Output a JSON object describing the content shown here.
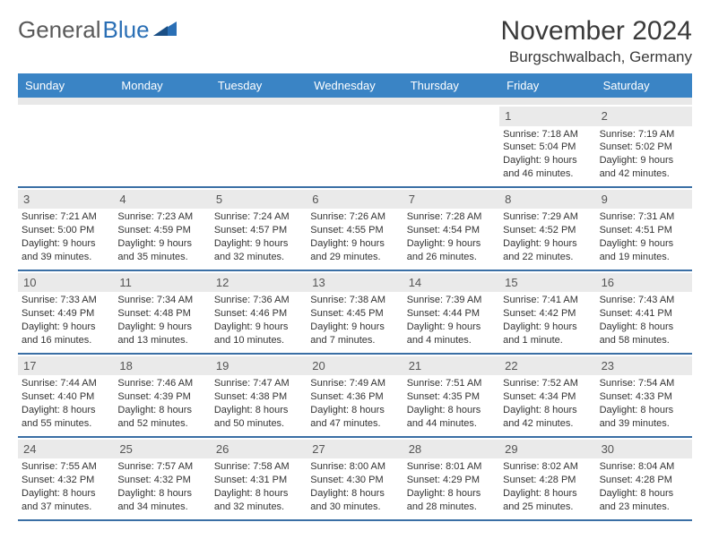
{
  "logo": {
    "text1": "General",
    "text2": "Blue"
  },
  "title": "November 2024",
  "location": "Burgschwalbach, Germany",
  "colors": {
    "header_bg": "#3a84c5",
    "header_text": "#ffffff",
    "divider": "#3a6fa5",
    "daynum_bg": "#eaeaea",
    "logo_gray": "#5a5a5a",
    "logo_blue": "#2a6fb5"
  },
  "dayNames": [
    "Sunday",
    "Monday",
    "Tuesday",
    "Wednesday",
    "Thursday",
    "Friday",
    "Saturday"
  ],
  "weeks": [
    [
      null,
      null,
      null,
      null,
      null,
      {
        "n": "1",
        "sunrise": "7:18 AM",
        "sunset": "5:04 PM",
        "daylight": "9 hours and 46 minutes."
      },
      {
        "n": "2",
        "sunrise": "7:19 AM",
        "sunset": "5:02 PM",
        "daylight": "9 hours and 42 minutes."
      }
    ],
    [
      {
        "n": "3",
        "sunrise": "7:21 AM",
        "sunset": "5:00 PM",
        "daylight": "9 hours and 39 minutes."
      },
      {
        "n": "4",
        "sunrise": "7:23 AM",
        "sunset": "4:59 PM",
        "daylight": "9 hours and 35 minutes."
      },
      {
        "n": "5",
        "sunrise": "7:24 AM",
        "sunset": "4:57 PM",
        "daylight": "9 hours and 32 minutes."
      },
      {
        "n": "6",
        "sunrise": "7:26 AM",
        "sunset": "4:55 PM",
        "daylight": "9 hours and 29 minutes."
      },
      {
        "n": "7",
        "sunrise": "7:28 AM",
        "sunset": "4:54 PM",
        "daylight": "9 hours and 26 minutes."
      },
      {
        "n": "8",
        "sunrise": "7:29 AM",
        "sunset": "4:52 PM",
        "daylight": "9 hours and 22 minutes."
      },
      {
        "n": "9",
        "sunrise": "7:31 AM",
        "sunset": "4:51 PM",
        "daylight": "9 hours and 19 minutes."
      }
    ],
    [
      {
        "n": "10",
        "sunrise": "7:33 AM",
        "sunset": "4:49 PM",
        "daylight": "9 hours and 16 minutes."
      },
      {
        "n": "11",
        "sunrise": "7:34 AM",
        "sunset": "4:48 PM",
        "daylight": "9 hours and 13 minutes."
      },
      {
        "n": "12",
        "sunrise": "7:36 AM",
        "sunset": "4:46 PM",
        "daylight": "9 hours and 10 minutes."
      },
      {
        "n": "13",
        "sunrise": "7:38 AM",
        "sunset": "4:45 PM",
        "daylight": "9 hours and 7 minutes."
      },
      {
        "n": "14",
        "sunrise": "7:39 AM",
        "sunset": "4:44 PM",
        "daylight": "9 hours and 4 minutes."
      },
      {
        "n": "15",
        "sunrise": "7:41 AM",
        "sunset": "4:42 PM",
        "daylight": "9 hours and 1 minute."
      },
      {
        "n": "16",
        "sunrise": "7:43 AM",
        "sunset": "4:41 PM",
        "daylight": "8 hours and 58 minutes."
      }
    ],
    [
      {
        "n": "17",
        "sunrise": "7:44 AM",
        "sunset": "4:40 PM",
        "daylight": "8 hours and 55 minutes."
      },
      {
        "n": "18",
        "sunrise": "7:46 AM",
        "sunset": "4:39 PM",
        "daylight": "8 hours and 52 minutes."
      },
      {
        "n": "19",
        "sunrise": "7:47 AM",
        "sunset": "4:38 PM",
        "daylight": "8 hours and 50 minutes."
      },
      {
        "n": "20",
        "sunrise": "7:49 AM",
        "sunset": "4:36 PM",
        "daylight": "8 hours and 47 minutes."
      },
      {
        "n": "21",
        "sunrise": "7:51 AM",
        "sunset": "4:35 PM",
        "daylight": "8 hours and 44 minutes."
      },
      {
        "n": "22",
        "sunrise": "7:52 AM",
        "sunset": "4:34 PM",
        "daylight": "8 hours and 42 minutes."
      },
      {
        "n": "23",
        "sunrise": "7:54 AM",
        "sunset": "4:33 PM",
        "daylight": "8 hours and 39 minutes."
      }
    ],
    [
      {
        "n": "24",
        "sunrise": "7:55 AM",
        "sunset": "4:32 PM",
        "daylight": "8 hours and 37 minutes."
      },
      {
        "n": "25",
        "sunrise": "7:57 AM",
        "sunset": "4:32 PM",
        "daylight": "8 hours and 34 minutes."
      },
      {
        "n": "26",
        "sunrise": "7:58 AM",
        "sunset": "4:31 PM",
        "daylight": "8 hours and 32 minutes."
      },
      {
        "n": "27",
        "sunrise": "8:00 AM",
        "sunset": "4:30 PM",
        "daylight": "8 hours and 30 minutes."
      },
      {
        "n": "28",
        "sunrise": "8:01 AM",
        "sunset": "4:29 PM",
        "daylight": "8 hours and 28 minutes."
      },
      {
        "n": "29",
        "sunrise": "8:02 AM",
        "sunset": "4:28 PM",
        "daylight": "8 hours and 25 minutes."
      },
      {
        "n": "30",
        "sunrise": "8:04 AM",
        "sunset": "4:28 PM",
        "daylight": "8 hours and 23 minutes."
      }
    ]
  ],
  "labels": {
    "sunrise": "Sunrise:",
    "sunset": "Sunset:",
    "daylight": "Daylight:"
  }
}
